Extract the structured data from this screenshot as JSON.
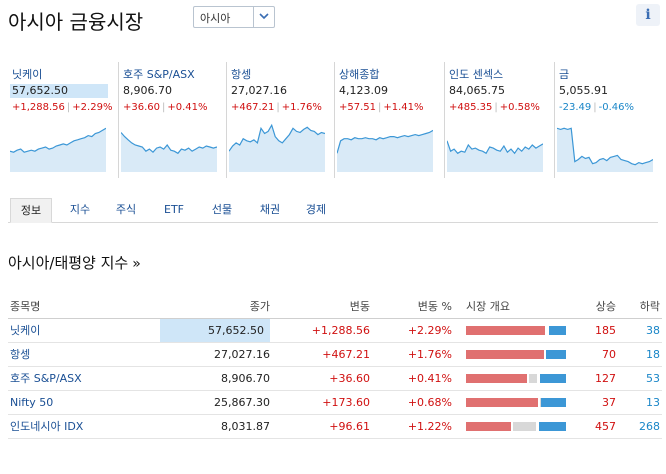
{
  "header": {
    "title": "아시아 금융시장",
    "region": "아시아"
  },
  "tiles": [
    {
      "name": "닛케이",
      "price": "57,652.50",
      "change": "+1,288.56",
      "pct": "+2.29%",
      "dir": "up",
      "highlight": true,
      "spark": [
        30,
        29,
        31,
        32,
        29,
        30,
        31,
        30,
        32,
        33,
        34,
        32,
        33,
        35,
        36,
        37,
        36,
        38,
        40,
        41,
        42,
        43,
        45,
        44,
        47,
        48,
        50,
        52
      ]
    },
    {
      "name": "호주 S&P/ASX",
      "price": "8,906.70",
      "change": "+36.60",
      "pct": "+0.41%",
      "dir": "up",
      "highlight": false,
      "spark": [
        48,
        44,
        41,
        38,
        36,
        35,
        34,
        30,
        32,
        29,
        33,
        34,
        32,
        36,
        31,
        30,
        28,
        32,
        31,
        33,
        30,
        32,
        34,
        33,
        35,
        34,
        33,
        34
      ]
    },
    {
      "name": "항셍",
      "price": "27,027.16",
      "change": "+467.21",
      "pct": "+1.76%",
      "dir": "up",
      "highlight": false,
      "spark": [
        30,
        35,
        38,
        36,
        42,
        40,
        39,
        41,
        38,
        52,
        47,
        49,
        55,
        44,
        40,
        38,
        42,
        46,
        52,
        49,
        48,
        51,
        53,
        50,
        49,
        46,
        48,
        47
      ]
    },
    {
      "name": "상해종합",
      "price": "4,123.09",
      "change": "+57.51",
      "pct": "+1.41%",
      "dir": "up",
      "highlight": false,
      "spark": [
        28,
        40,
        42,
        42,
        41,
        43,
        42,
        42,
        43,
        42,
        42,
        41,
        43,
        42,
        43,
        44,
        44,
        43,
        44,
        45,
        44,
        45,
        46,
        45,
        46,
        47,
        48,
        50
      ]
    },
    {
      "name": "인도 센섹스",
      "price": "84,065.75",
      "change": "+485.35",
      "pct": "+0.58%",
      "dir": "up",
      "highlight": false,
      "spark": [
        40,
        30,
        32,
        28,
        30,
        29,
        36,
        32,
        33,
        31,
        30,
        28,
        34,
        33,
        31,
        30,
        35,
        29,
        32,
        28,
        33,
        30,
        34,
        32,
        36,
        33,
        35,
        37
      ]
    },
    {
      "name": "금",
      "price": "5,055.91",
      "change": "-23.49",
      "pct": "-0.46%",
      "dir": "down",
      "highlight": false,
      "spark": [
        52,
        51,
        52,
        51,
        52,
        20,
        22,
        25,
        23,
        24,
        18,
        19,
        22,
        23,
        21,
        24,
        25,
        26,
        22,
        21,
        20,
        18,
        17,
        19,
        18,
        19,
        20,
        22
      ]
    }
  ],
  "tabs": [
    "정보",
    "지수",
    "주식",
    "ETF",
    "선물",
    "채권",
    "경제"
  ],
  "section": {
    "title": "아시아/태평양 지수",
    "arrow": "»"
  },
  "table": {
    "headers": {
      "name": "종목명",
      "price": "종가",
      "change": "변동",
      "pct": "변동 %",
      "overview": "시장 개요",
      "advance": "상승",
      "decline": "하락"
    },
    "rows": [
      {
        "name": "닛케이",
        "price": "57,652.50",
        "change": "+1,288.56",
        "pct": "+2.29%",
        "adv": "185",
        "dec": "38",
        "highlight": true,
        "bar": {
          "up": 0.79,
          "flat": 0.0,
          "down": 0.17
        }
      },
      {
        "name": "항셍",
        "price": "27,027.16",
        "change": "+467.21",
        "pct": "+1.76%",
        "adv": "70",
        "dec": "18",
        "highlight": false,
        "bar": {
          "up": 0.78,
          "flat": 0.0,
          "down": 0.2
        }
      },
      {
        "name": "호주 S&P/ASX",
        "price": "8,906.70",
        "change": "+36.60",
        "pct": "+0.41%",
        "adv": "127",
        "dec": "53",
        "highlight": false,
        "bar": {
          "up": 0.61,
          "flat": 0.08,
          "down": 0.26
        }
      },
      {
        "name": "Nifty 50",
        "price": "25,867.30",
        "change": "+173.60",
        "pct": "+0.68%",
        "adv": "37",
        "dec": "13",
        "highlight": false,
        "bar": {
          "up": 0.72,
          "flat": 0.03,
          "down": 0.25
        }
      },
      {
        "name": "인도네시아 IDX",
        "price": "8,031.87",
        "change": "+96.61",
        "pct": "+1.22%",
        "adv": "457",
        "dec": "268",
        "highlight": false,
        "bar": {
          "up": 0.45,
          "flat": 0.23,
          "down": 0.27
        }
      }
    ]
  },
  "colors": {
    "up": "#d01010",
    "down": "#1a86c8",
    "link": "#1a4f94",
    "spark_line": "#3c97d6",
    "spark_fill": "#d9eaf7"
  }
}
